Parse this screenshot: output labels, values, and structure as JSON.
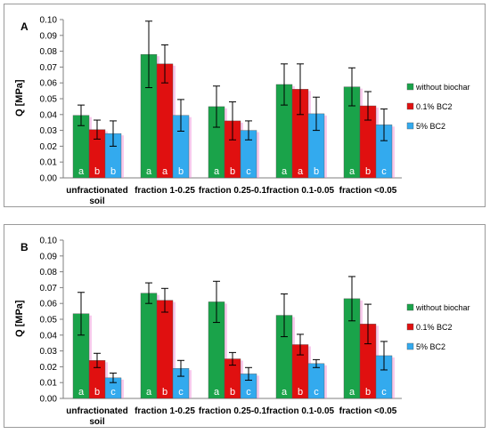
{
  "colors": {
    "without_biochar": "#1aa34a",
    "bc2_01": "#e01010",
    "bc2_5": "#33aaee"
  },
  "chart_data": [
    {
      "type": "bar",
      "panel": "A",
      "ylabel": "Q [MPa]",
      "ylim": [
        0,
        0.1
      ],
      "yticks": [
        "0.00",
        "0.01",
        "0.02",
        "0.03",
        "0.04",
        "0.05",
        "0.06",
        "0.07",
        "0.08",
        "0.09",
        "0.10"
      ],
      "categories": [
        [
          "unfractionated",
          "soil"
        ],
        [
          "fraction 1-0.25"
        ],
        [
          "fraction 0.25-0.1"
        ],
        [
          "fraction 0.1-0.05"
        ],
        [
          "fraction <0.05"
        ]
      ],
      "legend_position": "right",
      "series": [
        {
          "name": "without biochar",
          "values": [
            0.0395,
            0.078,
            0.045,
            0.059,
            0.0575
          ],
          "err": [
            0.0065,
            0.021,
            0.013,
            0.013,
            0.012
          ],
          "letters": [
            "a",
            "a",
            "a",
            "a",
            "a"
          ]
        },
        {
          "name": "0.1% BC2",
          "values": [
            0.0305,
            0.072,
            0.036,
            0.056,
            0.0455
          ],
          "err": [
            0.006,
            0.012,
            0.012,
            0.016,
            0.009
          ],
          "letters": [
            "b",
            "a",
            "b",
            "a",
            "b"
          ]
        },
        {
          "name": "5% BC2",
          "values": [
            0.028,
            0.0395,
            0.03,
            0.0405,
            0.0335
          ],
          "err": [
            0.008,
            0.01,
            0.006,
            0.0105,
            0.01
          ],
          "letters": [
            "b",
            "b",
            "c",
            "b",
            "c"
          ]
        }
      ]
    },
    {
      "type": "bar",
      "panel": "B",
      "ylabel": "Q [MPa]",
      "ylim": [
        0,
        0.1
      ],
      "yticks": [
        "0.00",
        "0.01",
        "0.02",
        "0.03",
        "0.04",
        "0.05",
        "0.06",
        "0.07",
        "0.08",
        "0.09",
        "0.10"
      ],
      "categories": [
        [
          "unfractionated",
          "soil"
        ],
        [
          "fraction 1-0.25"
        ],
        [
          "fraction 0.25-0.1"
        ],
        [
          "fraction 0.1-0.05"
        ],
        [
          "fraction <0.05"
        ]
      ],
      "legend_position": "right",
      "series": [
        {
          "name": "without biochar",
          "values": [
            0.0535,
            0.0665,
            0.061,
            0.0525,
            0.063
          ],
          "err": [
            0.0135,
            0.0065,
            0.013,
            0.0135,
            0.014
          ],
          "letters": [
            "a",
            "a",
            "a",
            "a",
            "a"
          ]
        },
        {
          "name": "0.1% BC2",
          "values": [
            0.024,
            0.062,
            0.025,
            0.034,
            0.047
          ],
          "err": [
            0.0045,
            0.0075,
            0.004,
            0.0065,
            0.0125
          ],
          "letters": [
            "b",
            "b",
            "b",
            "b",
            "b"
          ]
        },
        {
          "name": "5% BC2",
          "values": [
            0.013,
            0.019,
            0.0155,
            0.022,
            0.027
          ],
          "err": [
            0.003,
            0.005,
            0.004,
            0.0025,
            0.009
          ],
          "letters": [
            "c",
            "c",
            "c",
            "c",
            "c"
          ]
        }
      ]
    }
  ]
}
